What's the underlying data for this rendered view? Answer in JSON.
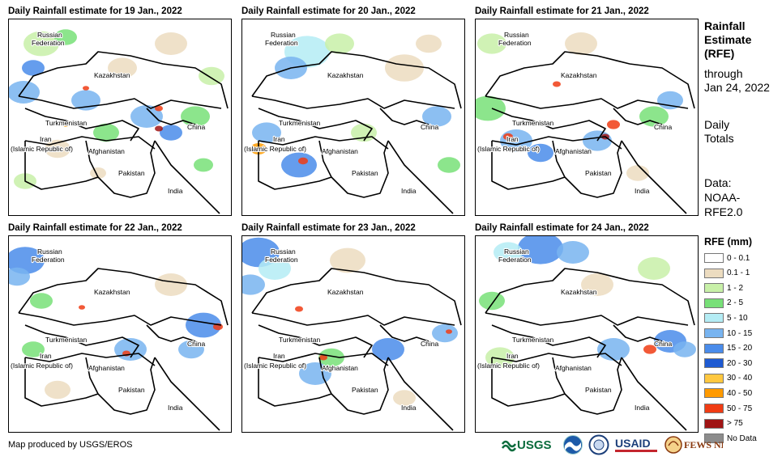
{
  "panels": [
    {
      "title": "Daily Rainfall estimate for 19 Jan., 2022"
    },
    {
      "title": "Daily Rainfall estimate for 20 Jan., 2022"
    },
    {
      "title": "Daily Rainfall estimate for 21 Jan., 2022"
    },
    {
      "title": "Daily Rainfall estimate for 22 Jan., 2022"
    },
    {
      "title": "Daily Rainfall estimate for 23 Jan., 2022"
    },
    {
      "title": "Daily Rainfall estimate for 24 Jan., 2022"
    }
  ],
  "map_labels": {
    "russia_1": "Russian",
    "russia_2": "Federation",
    "kazakhstan": "Kazakhstan",
    "turkmenistan": "Turkmenistan",
    "iran_1": "Iran",
    "iran_2": "(Islamic Republic of)",
    "afghanistan": "Afghanistan",
    "china": "China",
    "pakistan": "Pakistan",
    "india": "India"
  },
  "side": {
    "title_1": "Rainfall",
    "title_2": "Estimate",
    "title_3": "(RFE)",
    "through": "through",
    "date": "Jan 24, 2022",
    "daily": "Daily",
    "totals": "Totals",
    "data_label": "Data:",
    "data_src_1": "NOAA-",
    "data_src_2": "RFE2.0"
  },
  "legend": {
    "title": "RFE (mm)",
    "items": [
      {
        "label": "0 - 0.1",
        "color": "#ffffff"
      },
      {
        "label": "0.1 - 1",
        "color": "#ecdcc0"
      },
      {
        "label": "1 - 2",
        "color": "#c8f0a8"
      },
      {
        "label": "2 - 5",
        "color": "#78e078"
      },
      {
        "label": "5 - 10",
        "color": "#b4ecf4"
      },
      {
        "label": "10 - 15",
        "color": "#78b4f0"
      },
      {
        "label": "15 - 20",
        "color": "#4a8cea"
      },
      {
        "label": "20 - 30",
        "color": "#1e5ad2"
      },
      {
        "label": "30 - 40",
        "color": "#ffc840"
      },
      {
        "label": "40 - 50",
        "color": "#ff9a00"
      },
      {
        "label": "50 - 75",
        "color": "#f03c14"
      },
      {
        "label": "> 75",
        "color": "#a01414"
      },
      {
        "label": "No Data",
        "color": "#8c8c8c"
      }
    ]
  },
  "credit": "Map produced by USGS/EROS",
  "logos": {
    "usgs": "USGS",
    "usaid": "USAID",
    "fewsnet": "FEWS NET"
  }
}
